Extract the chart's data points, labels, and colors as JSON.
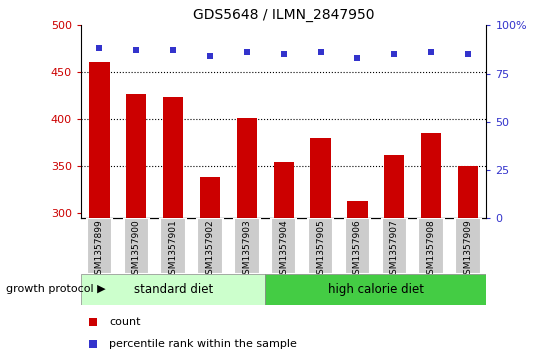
{
  "title": "GDS5648 / ILMN_2847950",
  "samples": [
    "GSM1357899",
    "GSM1357900",
    "GSM1357901",
    "GSM1357902",
    "GSM1357903",
    "GSM1357904",
    "GSM1357905",
    "GSM1357906",
    "GSM1357907",
    "GSM1357908",
    "GSM1357909"
  ],
  "counts": [
    461,
    427,
    424,
    338,
    401,
    354,
    380,
    313,
    362,
    385,
    350
  ],
  "percentile_ranks": [
    88,
    87,
    87,
    84,
    86,
    85,
    86,
    83,
    85,
    86,
    85
  ],
  "bar_color": "#cc0000",
  "dot_color": "#3333cc",
  "ylim_left": [
    295,
    500
  ],
  "ylim_right": [
    0,
    100
  ],
  "yticks_left": [
    300,
    350,
    400,
    450,
    500
  ],
  "yticks_right": [
    0,
    25,
    50,
    75,
    100
  ],
  "grid_lines": [
    350,
    400,
    450
  ],
  "n_standard": 5,
  "n_high_calorie": 6,
  "color_standard": "#ccffcc",
  "color_high_calorie": "#44cc44",
  "label_growth_protocol": "growth protocol",
  "label_standard": "standard diet",
  "label_high_calorie": "high calorie diet",
  "legend_count": "count",
  "legend_percentile": "percentile rank within the sample",
  "bg_xtick": "#cccccc",
  "bar_bottom": 295
}
